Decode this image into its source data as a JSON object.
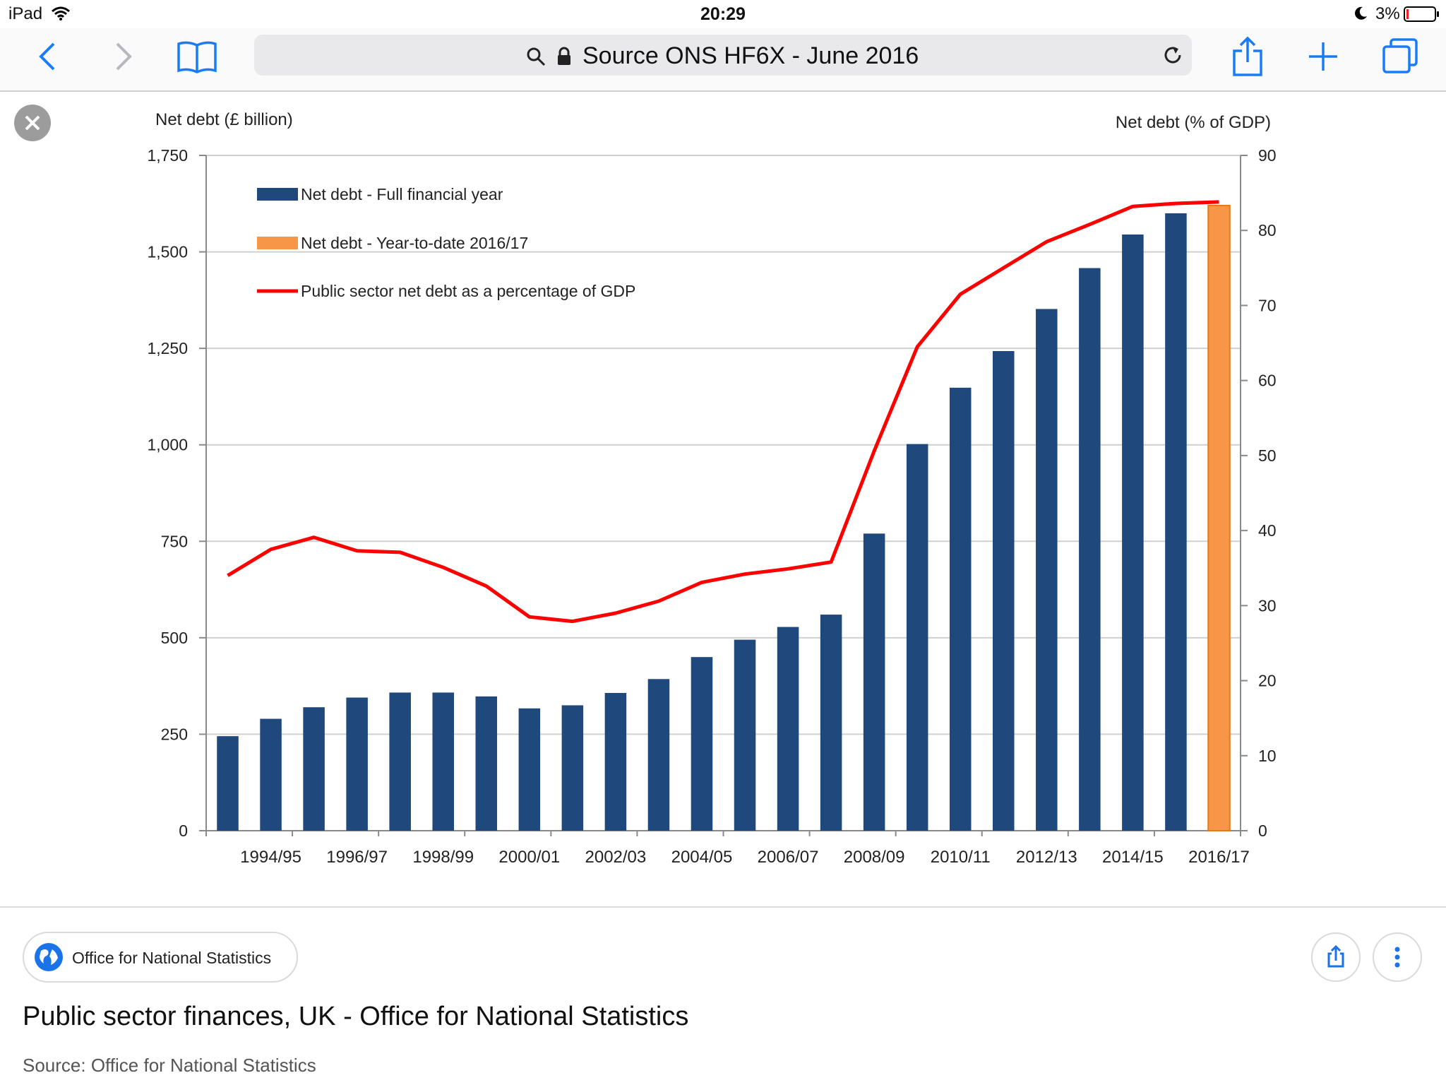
{
  "status_bar": {
    "device": "iPad",
    "time": "20:29",
    "battery": "3%"
  },
  "toolbar": {
    "address": "Source ONS HF6X - June 2016"
  },
  "icons": {
    "back": "chevron-left-icon",
    "forward": "chevron-right-icon",
    "bookmarks": "book-icon",
    "search": "magnifier-icon",
    "lock": "lock-icon",
    "reload": "reload-icon",
    "share": "share-icon",
    "new_tab": "plus-icon",
    "tabs": "tabs-icon",
    "close": "close-icon",
    "globe": "globe-icon",
    "more": "vertical-ellipsis-icon"
  },
  "colors": {
    "ui_accent": "#1a7cf5",
    "bar_full_year": "#1f497d",
    "bar_ytd": "#f79646",
    "line_gdp": "#ff0000"
  },
  "chart_data": {
    "type": "bar",
    "left_axis_title": "Net debt (£ billion)",
    "right_axis_title": "Net debt (% of GDP)",
    "ylim_left": [
      0,
      1750
    ],
    "ylim_right": [
      0,
      90
    ],
    "y_ticks_left": [
      "0",
      "250",
      "500",
      "750",
      "1,000",
      "1,250",
      "1,500",
      "1,750"
    ],
    "y_ticks_right": [
      "0",
      "10",
      "20",
      "30",
      "40",
      "50",
      "60",
      "70",
      "80",
      "90"
    ],
    "x_tick_labels": [
      "1994/95",
      "1996/97",
      "1998/99",
      "2000/01",
      "2002/03",
      "2004/05",
      "2006/07",
      "2008/09",
      "2010/11",
      "2012/13",
      "2014/15",
      "2016/17"
    ],
    "categories": [
      "1993/94",
      "1994/95",
      "1995/96",
      "1996/97",
      "1997/98",
      "1998/99",
      "1999/00",
      "2000/01",
      "2001/02",
      "2002/03",
      "2003/04",
      "2004/05",
      "2005/06",
      "2006/07",
      "2007/08",
      "2008/09",
      "2009/10",
      "2010/11",
      "2011/12",
      "2012/13",
      "2013/14",
      "2014/15",
      "2015/16",
      "2016/17"
    ],
    "grid": true,
    "legend_position": "top-left",
    "series": [
      {
        "name": "Net debt - Full financial year",
        "type": "bar",
        "axis": "left",
        "color": "#1f497d",
        "values": [
          245,
          290,
          320,
          345,
          358,
          358,
          348,
          317,
          325,
          357,
          393,
          450,
          495,
          528,
          560,
          770,
          1002,
          1148,
          1243,
          1352,
          1458,
          1545,
          1600,
          null
        ]
      },
      {
        "name": "Net debt - Year-to-date 2016/17",
        "type": "bar",
        "axis": "left",
        "color": "#f79646",
        "values": [
          null,
          null,
          null,
          null,
          null,
          null,
          null,
          null,
          null,
          null,
          null,
          null,
          null,
          null,
          null,
          null,
          null,
          null,
          null,
          null,
          null,
          null,
          null,
          1620
        ]
      },
      {
        "name": "Public sector net debt as a percentage of GDP",
        "type": "line",
        "axis": "right",
        "color": "#ff0000",
        "values": [
          34.0,
          37.5,
          39.1,
          37.3,
          37.1,
          35.1,
          32.6,
          28.5,
          27.9,
          29.0,
          30.6,
          33.1,
          34.2,
          34.9,
          35.8,
          50.6,
          64.5,
          71.5,
          75.0,
          78.5,
          80.8,
          83.2,
          83.6,
          83.8
        ]
      }
    ]
  },
  "card": {
    "source_chip": "Office for National Statistics",
    "title": "Public sector finances, UK - Office for National Statistics",
    "source_line": "Source: Office for National Statistics"
  }
}
